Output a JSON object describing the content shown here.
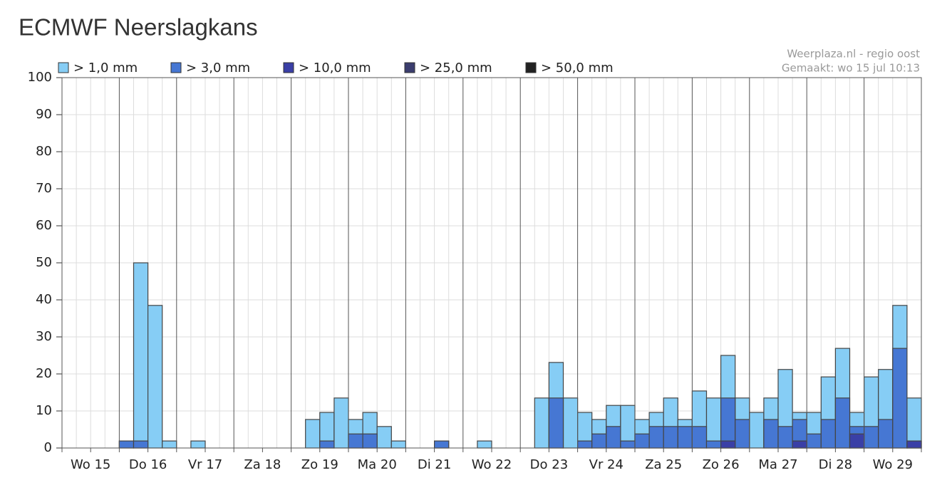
{
  "chart_data": {
    "type": "overlay-bar",
    "title": "ECMWF Neerslagkans",
    "source": "Weerplaza.nl - regio oost",
    "made": "Gemaakt: wo 15 jul 10:13",
    "days": [
      "Wo 15",
      "Do 16",
      "Vr 17",
      "Za 18",
      "Zo 19",
      "Ma 20",
      "Di 21",
      "Wo 22",
      "Do 23",
      "Vr 24",
      "Za 25",
      "Zo 26",
      "Ma 27",
      "Di 28",
      "Wo 29"
    ],
    "ylim": [
      0,
      100
    ],
    "yticks": [
      0,
      10,
      20,
      30,
      40,
      50,
      60,
      70,
      80,
      90,
      100
    ],
    "grid": true,
    "series": [
      {
        "name": "> 1,0 mm",
        "color": "#86cdf5",
        "values": [
          0,
          0,
          0,
          0,
          1.9,
          50,
          38.5,
          1.9,
          0,
          1.9,
          0,
          0,
          0,
          0,
          0,
          0,
          0,
          7.7,
          9.6,
          13.5,
          7.7,
          9.6,
          5.8,
          1.9,
          0,
          0,
          1.9,
          0,
          0,
          1.9,
          0,
          0,
          0,
          13.5,
          23.1,
          13.5,
          9.6,
          7.7,
          11.5,
          11.5,
          7.7,
          9.6,
          13.5,
          7.7,
          15.4,
          13.5,
          25,
          13.5,
          9.6,
          13.5,
          21.2,
          9.6,
          9.6,
          19.2,
          26.9,
          9.6,
          19.2,
          21.2,
          38.5,
          13.5
        ]
      },
      {
        "name": "> 3,0 mm",
        "color": "#4677d3",
        "values": [
          0,
          0,
          0,
          0,
          1.9,
          1.9,
          0,
          0,
          0,
          0,
          0,
          0,
          0,
          0,
          0,
          0,
          0,
          0,
          1.9,
          0,
          3.8,
          3.8,
          0,
          0,
          0,
          0,
          1.9,
          0,
          0,
          0,
          0,
          0,
          0,
          0,
          13.5,
          0,
          1.9,
          3.8,
          5.8,
          1.9,
          3.8,
          5.8,
          5.8,
          5.8,
          5.8,
          1.9,
          13.5,
          7.7,
          0,
          7.7,
          5.8,
          7.7,
          3.8,
          7.7,
          13.5,
          5.8,
          5.8,
          7.7,
          26.9,
          1.9
        ]
      },
      {
        "name": "> 10,0 mm",
        "color": "#3a3fa6",
        "values": [
          0,
          0,
          0,
          0,
          0,
          0,
          0,
          0,
          0,
          0,
          0,
          0,
          0,
          0,
          0,
          0,
          0,
          0,
          0,
          0,
          0,
          0,
          0,
          0,
          0,
          0,
          0,
          0,
          0,
          0,
          0,
          0,
          0,
          0,
          0,
          0,
          0,
          0,
          0,
          0,
          0,
          0,
          0,
          0,
          0,
          0,
          1.9,
          0,
          0,
          0,
          0,
          1.9,
          0,
          0,
          0,
          3.8,
          0,
          0,
          0,
          1.9
        ]
      },
      {
        "name": "> 25,0 mm",
        "color": "#3b3d6e",
        "values": [
          0,
          0,
          0,
          0,
          0,
          0,
          0,
          0,
          0,
          0,
          0,
          0,
          0,
          0,
          0,
          0,
          0,
          0,
          0,
          0,
          0,
          0,
          0,
          0,
          0,
          0,
          0,
          0,
          0,
          0,
          0,
          0,
          0,
          0,
          0,
          0,
          0,
          0,
          0,
          0,
          0,
          0,
          0,
          0,
          0,
          0,
          0,
          0,
          0,
          0,
          0,
          0,
          0,
          0,
          0,
          0,
          0,
          0,
          0,
          0
        ]
      },
      {
        "name": "> 50,0 mm",
        "color": "#222222",
        "values": [
          0,
          0,
          0,
          0,
          0,
          0,
          0,
          0,
          0,
          0,
          0,
          0,
          0,
          0,
          0,
          0,
          0,
          0,
          0,
          0,
          0,
          0,
          0,
          0,
          0,
          0,
          0,
          0,
          0,
          0,
          0,
          0,
          0,
          0,
          0,
          0,
          0,
          0,
          0,
          0,
          0,
          0,
          0,
          0,
          0,
          0,
          0,
          0,
          0,
          0,
          0,
          0,
          0,
          0,
          0,
          0,
          0,
          0,
          0,
          0
        ]
      }
    ]
  }
}
